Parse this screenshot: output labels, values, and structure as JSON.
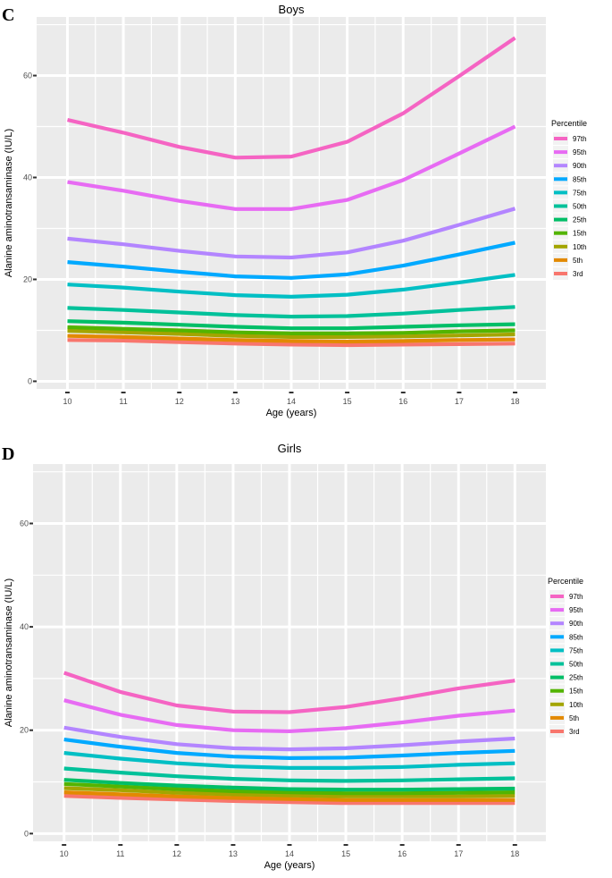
{
  "chart_data": [
    {
      "panel_label": "C",
      "type": "line",
      "title": "Boys",
      "xlabel": "Age (years)",
      "ylabel": "Alanine aminotransaminase (IU/L)",
      "x": [
        10,
        11,
        12,
        13,
        14,
        15,
        16,
        17,
        18
      ],
      "xticks": [
        "10",
        "11",
        "12",
        "13",
        "14",
        "15",
        "16",
        "17",
        "18"
      ],
      "yticks": [
        "0",
        "20",
        "40",
        "60"
      ],
      "xlim": [
        9.45,
        18.55
      ],
      "ylim": [
        -1.5,
        71.5
      ],
      "grid": true,
      "legend": {
        "title": "Percentile",
        "position": "right"
      },
      "series": [
        {
          "name": "97th",
          "color": "#F564C3",
          "values": [
            51.3,
            48.8,
            46.0,
            43.9,
            44.1,
            47.0,
            52.6,
            59.9,
            67.4
          ]
        },
        {
          "name": "95th",
          "color": "#E76BF3",
          "values": [
            39.1,
            37.4,
            35.4,
            33.8,
            33.8,
            35.6,
            39.5,
            44.7,
            50.0
          ]
        },
        {
          "name": "90th",
          "color": "#B385FF",
          "values": [
            28.0,
            26.9,
            25.6,
            24.5,
            24.3,
            25.3,
            27.6,
            30.7,
            33.9
          ]
        },
        {
          "name": "85th",
          "color": "#00A9FF",
          "values": [
            23.4,
            22.5,
            21.5,
            20.6,
            20.3,
            21.0,
            22.7,
            24.9,
            27.2
          ]
        },
        {
          "name": "75th",
          "color": "#00BFC4",
          "values": [
            19.0,
            18.4,
            17.6,
            16.9,
            16.6,
            17.0,
            18.0,
            19.4,
            20.9
          ]
        },
        {
          "name": "50th",
          "color": "#00C19A",
          "values": [
            14.4,
            14.0,
            13.5,
            13.0,
            12.7,
            12.8,
            13.3,
            14.0,
            14.6
          ]
        },
        {
          "name": "25th",
          "color": "#00BE67",
          "values": [
            11.8,
            11.5,
            11.1,
            10.7,
            10.4,
            10.4,
            10.7,
            11.0,
            11.2
          ]
        },
        {
          "name": "15th",
          "color": "#53B400",
          "values": [
            10.6,
            10.3,
            10.0,
            9.6,
            9.4,
            9.4,
            9.5,
            9.8,
            10.0
          ]
        },
        {
          "name": "10th",
          "color": "#A3A500",
          "values": [
            9.9,
            9.6,
            9.3,
            8.9,
            8.7,
            8.7,
            8.8,
            9.0,
            9.2
          ]
        },
        {
          "name": "5th",
          "color": "#E38900",
          "values": [
            8.9,
            8.7,
            8.4,
            8.1,
            7.9,
            7.8,
            7.9,
            8.1,
            8.2
          ]
        },
        {
          "name": "3rd",
          "color": "#F8766D",
          "values": [
            8.1,
            8.0,
            7.7,
            7.4,
            7.2,
            7.1,
            7.2,
            7.3,
            7.4
          ]
        }
      ]
    },
    {
      "panel_label": "D",
      "type": "line",
      "title": "Girls",
      "xlabel": "Age (years)",
      "ylabel": "Alanine aminotransaminase (IU/L)",
      "x": [
        10,
        11,
        12,
        13,
        14,
        15,
        16,
        17,
        18
      ],
      "xticks": [
        "10",
        "11",
        "12",
        "13",
        "14",
        "15",
        "16",
        "17",
        "18"
      ],
      "yticks": [
        "0",
        "20",
        "40",
        "60"
      ],
      "xlim": [
        9.45,
        18.55
      ],
      "ylim": [
        -1.5,
        71.5
      ],
      "grid": true,
      "legend": {
        "title": "Percentile",
        "position": "right"
      },
      "series": [
        {
          "name": "97th",
          "color": "#F564C3",
          "values": [
            31.1,
            27.4,
            24.8,
            23.6,
            23.5,
            24.5,
            26.2,
            28.1,
            29.6
          ]
        },
        {
          "name": "95th",
          "color": "#E76BF3",
          "values": [
            25.8,
            23.0,
            21.0,
            20.0,
            19.8,
            20.4,
            21.5,
            22.8,
            23.8
          ]
        },
        {
          "name": "90th",
          "color": "#B385FF",
          "values": [
            20.5,
            18.7,
            17.3,
            16.5,
            16.3,
            16.5,
            17.1,
            17.8,
            18.4
          ]
        },
        {
          "name": "85th",
          "color": "#00A9FF",
          "values": [
            18.2,
            16.8,
            15.6,
            14.9,
            14.6,
            14.7,
            15.1,
            15.6,
            16.0
          ]
        },
        {
          "name": "75th",
          "color": "#00BFC4",
          "values": [
            15.6,
            14.5,
            13.6,
            13.0,
            12.7,
            12.7,
            12.9,
            13.3,
            13.6
          ]
        },
        {
          "name": "50th",
          "color": "#00C19A",
          "values": [
            12.6,
            11.8,
            11.1,
            10.6,
            10.3,
            10.2,
            10.3,
            10.5,
            10.7
          ]
        },
        {
          "name": "25th",
          "color": "#00BE67",
          "values": [
            10.4,
            9.8,
            9.3,
            8.9,
            8.6,
            8.5,
            8.5,
            8.6,
            8.7
          ]
        },
        {
          "name": "15th",
          "color": "#53B400",
          "values": [
            9.6,
            9.1,
            8.6,
            8.2,
            8.0,
            7.8,
            7.8,
            7.9,
            8.0
          ]
        },
        {
          "name": "10th",
          "color": "#A3A500",
          "values": [
            8.8,
            8.4,
            7.9,
            7.6,
            7.4,
            7.2,
            7.2,
            7.2,
            7.3
          ]
        },
        {
          "name": "5th",
          "color": "#E38900",
          "values": [
            8.0,
            7.6,
            7.2,
            6.9,
            6.7,
            6.5,
            6.5,
            6.5,
            6.5
          ]
        },
        {
          "name": "3rd",
          "color": "#F8766D",
          "values": [
            7.3,
            6.9,
            6.6,
            6.3,
            6.1,
            5.9,
            5.9,
            5.9,
            5.9
          ]
        }
      ]
    }
  ]
}
